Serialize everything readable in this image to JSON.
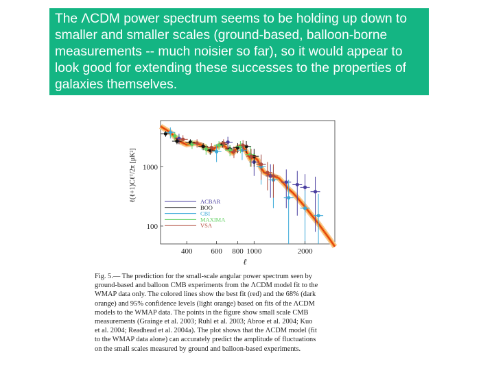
{
  "slide": {
    "text_lines": [
      "The ΛCDM power spectrum seems to be holding up down to",
      "smaller and smaller scales (ground-based, balloon-borne",
      "measurements -- much noisier so far), so it would appear to",
      "look good for extending these successes to the properties of",
      "galaxies themselves."
    ],
    "banner_color": "#14b583"
  },
  "figure": {
    "caption_lines": [
      "Fig. 5.— The prediction for the small-scale angular power spectrum seen by",
      "ground-based and balloon CMB experiments from the ΛCDM model fit to the",
      "WMAP data only. The colored lines show the best fit (red) and the 68% (dark",
      "orange) and 95% confidence levels (light orange) based on fits of the ΛCDM",
      "models to the WMAP data. The points in the figure show small scale CMB",
      "measurements (Grainge et al. 2003; Ruhl et al. 2003; Abroe et al. 2004; Kuo",
      "et al. 2004; Readhead et al. 2004a). The plot shows that the ΛCDM model (fit",
      "to the WMAP data alone) can accurately predict the amplitude of fluctuations",
      "on the small scales measured by ground and balloon-based experiments."
    ]
  },
  "chart_data": {
    "type": "scatter",
    "xlabel": "ℓ",
    "ylabel": "ℓ(ℓ+1)Cℓᵀ/2π  [μK²]",
    "x_ticks": [
      "400",
      "600",
      "800",
      "1000",
      "2000"
    ],
    "x_tick_values": [
      400,
      600,
      800,
      1000,
      2000
    ],
    "y_ticks": [
      "100",
      "1000"
    ],
    "y_tick_values": [
      100,
      1000
    ],
    "x_scale": "log",
    "y_scale": "log",
    "xlim": [
      280,
      3000
    ],
    "ylim": [
      50,
      6000
    ],
    "legend_position": "bottom-left",
    "colors": {
      "ACBAR": "#4a3fa0",
      "BOOMERANG": "#111111",
      "CBI": "#3aa8d8",
      "MAXIMA": "#5fd060",
      "VSA": "#b04a3a",
      "best_fit": "#e02010",
      "conf68": "#f08a20",
      "conf95": "#f8c890"
    },
    "model": {
      "name": "best fit",
      "x": [
        280,
        320,
        360,
        400,
        450,
        500,
        550,
        600,
        650,
        700,
        750,
        800,
        850,
        900,
        950,
        1000,
        1050,
        1100,
        1150,
        1200,
        1300,
        1400,
        1500,
        1600,
        1700,
        1800,
        1900,
        2000,
        2200,
        2400,
        2600,
        2800,
        3000
      ],
      "y": [
        4800,
        3800,
        2700,
        2350,
        2500,
        2250,
        1850,
        2150,
        2400,
        2000,
        1700,
        2100,
        2250,
        1800,
        1350,
        1450,
        1300,
        950,
        800,
        750,
        700,
        640,
        520,
        420,
        360,
        300,
        250,
        210,
        150,
        110,
        80,
        60,
        45
      ]
    },
    "series": [
      {
        "name": "ACBAR",
        "x": [
          360,
          700,
          1000,
          1100,
          1250,
          1550,
          1800,
          2000,
          2300
        ],
        "y": [
          3000,
          2600,
          1200,
          1100,
          700,
          550,
          500,
          450,
          380
        ],
        "err": [
          600,
          600,
          500,
          500,
          400,
          350,
          350,
          300,
          300
        ]
      },
      {
        "name": "BOO",
        "x": [
          300,
          350,
          420,
          500,
          550,
          650,
          720,
          800,
          900,
          1000
        ],
        "y": [
          3600,
          2700,
          2600,
          2200,
          1900,
          2400,
          2000,
          2100,
          2200,
          1500
        ],
        "err": [
          400,
          300,
          300,
          300,
          300,
          300,
          300,
          400,
          500,
          500
        ]
      },
      {
        "name": "CBI",
        "x": [
          320,
          600,
          850,
          1100,
          1300,
          1600,
          2000,
          2400
        ],
        "y": [
          3800,
          1800,
          1900,
          1000,
          600,
          300,
          200,
          150
        ],
        "err": [
          800,
          600,
          600,
          500,
          400,
          300,
          200,
          200
        ]
      },
      {
        "name": "MAXIMA",
        "x": [
          340,
          430,
          520,
          620,
          720,
          830,
          950
        ],
        "y": [
          3300,
          2400,
          2000,
          2300,
          1900,
          2200,
          1600
        ],
        "err": [
          500,
          400,
          400,
          400,
          400,
          500,
          600
        ]
      },
      {
        "name": "VSA",
        "x": [
          380,
          460,
          560,
          660,
          760,
          860,
          960,
          1100,
          1200,
          1300
        ],
        "y": [
          2900,
          2500,
          2100,
          2500,
          1800,
          2300,
          1500,
          1100,
          800,
          700
        ],
        "err": [
          500,
          400,
          400,
          400,
          400,
          500,
          500,
          500,
          400,
          400
        ]
      }
    ],
    "legend": [
      "ACBAR",
      "BOO",
      "CBI",
      "MAXIMA",
      "VSA"
    ]
  }
}
